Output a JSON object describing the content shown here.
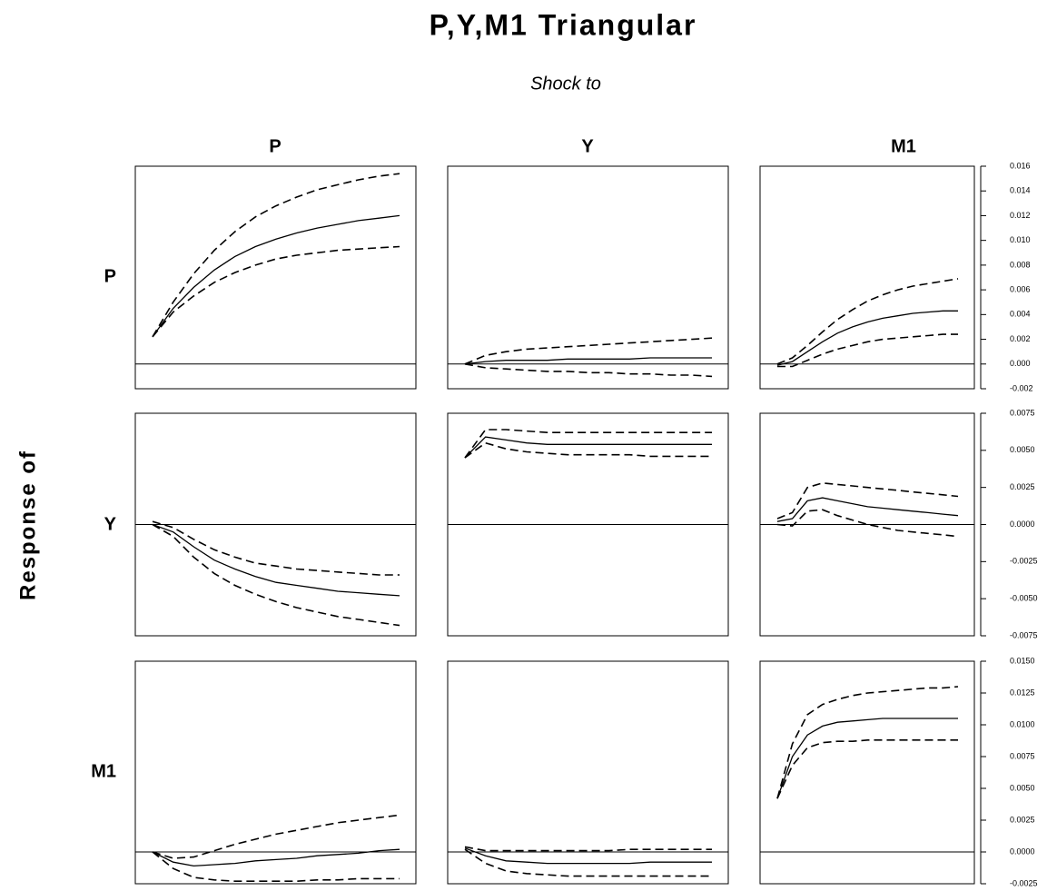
{
  "header": {
    "title": "P,Y,M1 Triangular",
    "subtitle": "Shock to",
    "y_label": "Response of",
    "columns": [
      "P",
      "Y",
      "M1"
    ],
    "rows": [
      "P",
      "Y",
      "M1"
    ]
  },
  "chart_data": [
    {
      "type": "line",
      "categories": [
        null,
        null,
        null,
        null,
        null,
        null,
        null,
        null,
        null,
        null,
        null,
        null,
        null
      ],
      "ylim": [
        -0.002,
        0.016
      ],
      "series": [
        {
          "color": "#000",
          "dash": false,
          "values": [
            0.0022,
            0.0045,
            0.0062,
            0.0076,
            0.0087,
            0.0095,
            0.0101,
            0.0106,
            0.011,
            0.0113,
            0.0116,
            0.0118,
            0.012
          ]
        },
        {
          "color": "#000",
          "dash": true,
          "values": [
            0.0022,
            0.005,
            0.0073,
            0.0092,
            0.0107,
            0.0119,
            0.0128,
            0.0135,
            0.0141,
            0.0145,
            0.0149,
            0.0152,
            0.0154
          ]
        },
        {
          "color": "#000",
          "dash": true,
          "values": [
            0.0022,
            0.0042,
            0.0055,
            0.0066,
            0.0074,
            0.008,
            0.0085,
            0.0088,
            0.009,
            0.0092,
            0.0093,
            0.0094,
            0.0095
          ]
        }
      ]
    },
    {
      "type": "line",
      "categories": [
        null,
        null,
        null,
        null,
        null,
        null,
        null,
        null,
        null,
        null,
        null,
        null,
        null
      ],
      "ylim": [
        -0.002,
        0.016
      ],
      "series": [
        {
          "color": "#000",
          "dash": false,
          "values": [
            0.0,
            0.0002,
            0.0003,
            0.0003,
            0.0003,
            0.0004,
            0.0004,
            0.0004,
            0.0004,
            0.0005,
            0.0005,
            0.0005,
            0.0005
          ]
        },
        {
          "color": "#000",
          "dash": true,
          "values": [
            0.0,
            0.0007,
            0.001,
            0.0012,
            0.0013,
            0.0014,
            0.0015,
            0.0016,
            0.0017,
            0.0018,
            0.0019,
            0.002,
            0.0021
          ]
        },
        {
          "color": "#000",
          "dash": true,
          "values": [
            0.0,
            -0.0003,
            -0.0004,
            -0.0005,
            -0.0006,
            -0.0006,
            -0.0007,
            -0.0007,
            -0.0008,
            -0.0008,
            -0.0009,
            -0.0009,
            -0.001
          ]
        }
      ]
    },
    {
      "type": "line",
      "categories": [
        null,
        null,
        null,
        null,
        null,
        null,
        null,
        null,
        null,
        null,
        null,
        null,
        null
      ],
      "ylim": [
        -0.002,
        0.016
      ],
      "yticks": [
        0.016,
        0.014,
        0.012,
        {
          "value": 0.01,
          "label": "0.010"
        },
        0.008,
        0.006,
        0.004,
        0.002,
        {
          "value": 0,
          "label": "0.000"
        },
        -0.002
      ],
      "series": [
        {
          "color": "#000",
          "dash": false,
          "values": [
            -0.0001,
            0.0002,
            0.001,
            0.0018,
            0.0025,
            0.003,
            0.0034,
            0.0037,
            0.0039,
            0.0041,
            0.0042,
            0.0043,
            0.0043
          ]
        },
        {
          "color": "#000",
          "dash": true,
          "values": [
            0.0,
            0.0005,
            0.0015,
            0.0026,
            0.0036,
            0.0044,
            0.0051,
            0.0056,
            0.006,
            0.0063,
            0.0065,
            0.0067,
            0.0069
          ]
        },
        {
          "color": "#000",
          "dash": true,
          "values": [
            -0.0002,
            -0.0002,
            0.0003,
            0.0008,
            0.0012,
            0.0015,
            0.0018,
            0.002,
            0.0021,
            0.0022,
            0.0023,
            0.0024,
            0.0024
          ]
        }
      ]
    },
    {
      "type": "line",
      "categories": [
        null,
        null,
        null,
        null,
        null,
        null,
        null,
        null,
        null,
        null,
        null,
        null,
        null
      ],
      "ylim": [
        -0.0075,
        0.0075
      ],
      "series": [
        {
          "color": "#000",
          "dash": false,
          "values": [
            0.0,
            -0.0005,
            -0.0015,
            -0.0024,
            -0.003,
            -0.0035,
            -0.0039,
            -0.0041,
            -0.0043,
            -0.0045,
            -0.0046,
            -0.0047,
            -0.0048
          ]
        },
        {
          "color": "#000",
          "dash": true,
          "values": [
            0.0002,
            -0.0002,
            -0.001,
            -0.0017,
            -0.0022,
            -0.0026,
            -0.0028,
            -0.003,
            -0.0031,
            -0.0032,
            -0.0033,
            -0.0034,
            -0.0034
          ]
        },
        {
          "color": "#000",
          "dash": true,
          "values": [
            0.0,
            -0.0008,
            -0.0022,
            -0.0033,
            -0.0041,
            -0.0047,
            -0.0052,
            -0.0056,
            -0.0059,
            -0.0062,
            -0.0064,
            -0.0066,
            -0.0068
          ]
        }
      ]
    },
    {
      "type": "line",
      "categories": [
        null,
        null,
        null,
        null,
        null,
        null,
        null,
        null,
        null,
        null,
        null,
        null,
        null
      ],
      "ylim": [
        -0.0075,
        0.0075
      ],
      "series": [
        {
          "color": "#000",
          "dash": false,
          "values": [
            0.0045,
            0.0059,
            0.0057,
            0.0055,
            0.0054,
            0.0054,
            0.0054,
            0.0054,
            0.0054,
            0.0054,
            0.0054,
            0.0054,
            0.0054
          ]
        },
        {
          "color": "#000",
          "dash": true,
          "values": [
            0.0045,
            0.0064,
            0.0064,
            0.0063,
            0.0062,
            0.0062,
            0.0062,
            0.0062,
            0.0062,
            0.0062,
            0.0062,
            0.0062,
            0.0062
          ]
        },
        {
          "color": "#000",
          "dash": true,
          "values": [
            0.0045,
            0.0055,
            0.0051,
            0.0049,
            0.0048,
            0.0047,
            0.0047,
            0.0047,
            0.0047,
            0.0046,
            0.0046,
            0.0046,
            0.0046
          ]
        }
      ]
    },
    {
      "type": "line",
      "categories": [
        null,
        null,
        null,
        null,
        null,
        null,
        null,
        null,
        null,
        null,
        null,
        null,
        null
      ],
      "ylim": [
        -0.0075,
        0.0075
      ],
      "yticks": [
        0.0075,
        {
          "value": 0.005,
          "label": "0.0050"
        },
        0.0025,
        {
          "value": 0,
          "label": "0.0000"
        },
        -0.0025,
        {
          "value": -0.005,
          "label": "-0.0050"
        },
        -0.0075
      ],
      "series": [
        {
          "color": "#000",
          "dash": false,
          "values": [
            0.0002,
            0.0004,
            0.0016,
            0.0018,
            0.0016,
            0.0014,
            0.0012,
            0.0011,
            0.001,
            0.0009,
            0.0008,
            0.0007,
            0.0006
          ]
        },
        {
          "color": "#000",
          "dash": true,
          "values": [
            0.0004,
            0.0008,
            0.0025,
            0.0028,
            0.0027,
            0.0026,
            0.0025,
            0.0024,
            0.0023,
            0.0022,
            0.0021,
            0.002,
            0.0019
          ]
        },
        {
          "color": "#000",
          "dash": true,
          "values": [
            0.0,
            -0.0001,
            0.0009,
            0.001,
            0.0006,
            0.0003,
            0.0,
            -0.0002,
            -0.0004,
            -0.0005,
            -0.0006,
            -0.0007,
            -0.0008
          ]
        }
      ]
    },
    {
      "type": "line",
      "categories": [
        null,
        null,
        null,
        null,
        null,
        null,
        null,
        null,
        null,
        null,
        null,
        null,
        null
      ],
      "ylim": [
        -0.0025,
        0.015
      ],
      "series": [
        {
          "color": "#000",
          "dash": false,
          "values": [
            0.0,
            -0.0008,
            -0.0011,
            -0.001,
            -0.0009,
            -0.0007,
            -0.0006,
            -0.0005,
            -0.0003,
            -0.0002,
            -0.0001,
            0.0001,
            0.0002
          ]
        },
        {
          "color": "#000",
          "dash": true,
          "values": [
            0.0,
            -0.0005,
            -0.0004,
            0.0001,
            0.0006,
            0.001,
            0.0014,
            0.0017,
            0.002,
            0.0023,
            0.0025,
            0.0027,
            0.0029
          ]
        },
        {
          "color": "#000",
          "dash": true,
          "values": [
            0.0,
            -0.0013,
            -0.002,
            -0.0022,
            -0.0023,
            -0.0023,
            -0.0023,
            -0.0023,
            -0.0022,
            -0.0022,
            -0.0021,
            -0.0021,
            -0.0021
          ]
        }
      ]
    },
    {
      "type": "line",
      "categories": [
        null,
        null,
        null,
        null,
        null,
        null,
        null,
        null,
        null,
        null,
        null,
        null,
        null
      ],
      "ylim": [
        -0.0025,
        0.015
      ],
      "series": [
        {
          "color": "#000",
          "dash": false,
          "values": [
            0.0003,
            -0.0003,
            -0.0007,
            -0.0008,
            -0.0009,
            -0.0009,
            -0.0009,
            -0.0009,
            -0.0009,
            -0.0008,
            -0.0008,
            -0.0008,
            -0.0008
          ]
        },
        {
          "color": "#000",
          "dash": true,
          "values": [
            0.0004,
            0.0001,
            0.0001,
            0.0001,
            0.0001,
            0.0001,
            0.0001,
            0.0001,
            0.0002,
            0.0002,
            0.0002,
            0.0002,
            0.0002
          ]
        },
        {
          "color": "#000",
          "dash": true,
          "values": [
            0.0002,
            -0.0009,
            -0.0015,
            -0.0017,
            -0.0018,
            -0.0019,
            -0.0019,
            -0.0019,
            -0.0019,
            -0.0019,
            -0.0019,
            -0.0019,
            -0.0019
          ]
        }
      ]
    },
    {
      "type": "line",
      "categories": [
        null,
        null,
        null,
        null,
        null,
        null,
        null,
        null,
        null,
        null,
        null,
        null,
        null
      ],
      "ylim": [
        -0.0025,
        0.015
      ],
      "yticks": [
        {
          "value": 0.015,
          "label": "0.0150"
        },
        0.0125,
        {
          "value": 0.01,
          "label": "0.0100"
        },
        0.0075,
        {
          "value": 0.005,
          "label": "0.0050"
        },
        0.0025,
        {
          "value": 0,
          "label": "0.0000"
        },
        -0.0025
      ],
      "series": [
        {
          "color": "#000",
          "dash": false,
          "values": [
            0.0042,
            0.0075,
            0.0092,
            0.0099,
            0.0102,
            0.0103,
            0.0104,
            0.0105,
            0.0105,
            0.0105,
            0.0105,
            0.0105,
            0.0105
          ]
        },
        {
          "color": "#000",
          "dash": true,
          "values": [
            0.0042,
            0.0085,
            0.0108,
            0.0116,
            0.012,
            0.0123,
            0.0125,
            0.0126,
            0.0127,
            0.0128,
            0.0129,
            0.0129,
            0.013
          ]
        },
        {
          "color": "#000",
          "dash": true,
          "values": [
            0.0042,
            0.0068,
            0.0082,
            0.0086,
            0.0087,
            0.0087,
            0.0088,
            0.0088,
            0.0088,
            0.0088,
            0.0088,
            0.0088,
            0.0088
          ]
        }
      ]
    }
  ]
}
